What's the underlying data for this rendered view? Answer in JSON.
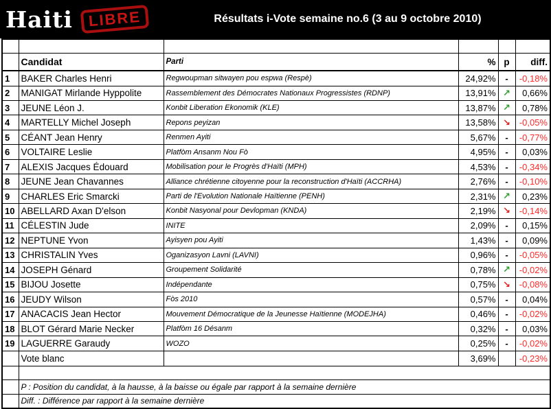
{
  "header": {
    "logo_haiti": "Haiti",
    "logo_libre": "LIBRE",
    "title": "Résultats i-Vote semaine no.6 (3 au 9 octobre 2010)"
  },
  "table": {
    "columns": {
      "candidate": "Candidat",
      "party": "Parti",
      "percent": "%",
      "position": "p",
      "diff": "diff."
    },
    "colors": {
      "positive_diff": "#000000",
      "negative_diff": "#ff2929"
    },
    "trend_symbols": {
      "same": {
        "glyph": "-",
        "color": "#000000"
      },
      "up": {
        "glyph": "↗",
        "color": "#2f9e2f"
      },
      "down": {
        "glyph": "↘",
        "color": "#e52020"
      },
      "none": {
        "glyph": "",
        "color": "#000000"
      }
    },
    "rows": [
      {
        "rank": "1",
        "candidate": "BAKER Charles Henri",
        "party": "Regwoupman sitwayen pou espwa (Respè)",
        "percent": "24,92%",
        "trend": "same",
        "diff": "-0,18%"
      },
      {
        "rank": "2",
        "candidate": "MANIGAT Mirlande Hyppolite",
        "party": "Rassemblement des Démocrates Nationaux Progressistes (RDNP)",
        "percent": "13,91%",
        "trend": "up",
        "diff": "0,66%"
      },
      {
        "rank": "3",
        "candidate": "JEUNE Léon J.",
        "party": "Konbit Liberation Ekonomik (KLE)",
        "percent": "13,87%",
        "trend": "up",
        "diff": "0,78%"
      },
      {
        "rank": "4",
        "candidate": "MARTELLY Michel Joseph",
        "party": "Repons peyizan",
        "percent": "13,58%",
        "trend": "down",
        "diff": "-0,05%"
      },
      {
        "rank": "5",
        "candidate": "CÉANT Jean Henry",
        "party": "Renmen Ayiti",
        "percent": "5,67%",
        "trend": "same",
        "diff": "-0,77%"
      },
      {
        "rank": "6",
        "candidate": "VOLTAIRE Leslie",
        "party": "Platfòm Ansanm Nou Fò",
        "percent": "4,95%",
        "trend": "same",
        "diff": "0,03%"
      },
      {
        "rank": "7",
        "candidate": "ALEXIS Jacques Édouard",
        "party": "Mobilisation pour le Progrès d'Haïti (MPH)",
        "percent": "4,53%",
        "trend": "same",
        "diff": "-0,34%"
      },
      {
        "rank": "8",
        "candidate": "JEUNE Jean Chavannes",
        "party": "Alliance chrétienne citoyenne pour la reconstruction d'Haïti (ACCRHA)",
        "percent": "2,76%",
        "trend": "same",
        "diff": "-0,10%"
      },
      {
        "rank": "9",
        "candidate": "CHARLES Eric Smarcki",
        "party": "Parti de l'Evolution Nationale Haïtienne (PENH)",
        "percent": "2,31%",
        "trend": "up",
        "diff": "0,23%"
      },
      {
        "rank": "10",
        "candidate": "ABELLARD Axan D'elson",
        "party": "Konbit Nasyonal pour Devlopman (KNDA)",
        "percent": "2,19%",
        "trend": "down",
        "diff": "-0,14%"
      },
      {
        "rank": "11",
        "candidate": "CÉLESTIN Jude",
        "party": "INITE",
        "percent": "2,09%",
        "trend": "same",
        "diff": "0,15%"
      },
      {
        "rank": "12",
        "candidate": "NEPTUNE Yvon",
        "party": "Ayisyen pou Ayiti",
        "percent": "1,43%",
        "trend": "same",
        "diff": "0,09%"
      },
      {
        "rank": "13",
        "candidate": "CHRISTALIN Yves",
        "party": "Oganizasyon Lavni (LAVNI)",
        "percent": "0,96%",
        "trend": "same",
        "diff": "-0,05%"
      },
      {
        "rank": "14",
        "candidate": "JOSEPH Génard",
        "party": "Groupement Solidarité",
        "percent": "0,78%",
        "trend": "up",
        "diff": "-0,02%"
      },
      {
        "rank": "15",
        "candidate": "BIJOU Josette",
        "party": "Indépendante",
        "percent": "0,75%",
        "trend": "down",
        "diff": "-0,08%"
      },
      {
        "rank": "16",
        "candidate": "JEUDY Wilson",
        "party": "Fòs 2010",
        "percent": "0,57%",
        "trend": "same",
        "diff": "0,04%"
      },
      {
        "rank": "17",
        "candidate": "ANACACIS Jean Hector",
        "party": "Mouvement Démocratique de la Jeunesse Haïtienne (MODEJHA)",
        "percent": "0,46%",
        "trend": "same",
        "diff": "-0,02%"
      },
      {
        "rank": "18",
        "candidate": "BLOT Gérard Marie Necker",
        "party": "Platfòm 16 Désanm",
        "percent": "0,32%",
        "trend": "same",
        "diff": "0,03%"
      },
      {
        "rank": "19",
        "candidate": "LAGUERRE Garaudy",
        "party": "WOZO",
        "percent": "0,25%",
        "trend": "same",
        "diff": "-0,02%"
      },
      {
        "rank": "",
        "candidate": "Vote blanc",
        "party": "",
        "percent": "3,69%",
        "trend": "none",
        "diff": "-0,23%"
      }
    ]
  },
  "footer": {
    "p_note": "P : Position du candidat, à la hausse,  à la baisse ou égale par rapport à la semaine dernière",
    "diff_note": "Diff. : Différence par rapport à la semaine dernière"
  }
}
